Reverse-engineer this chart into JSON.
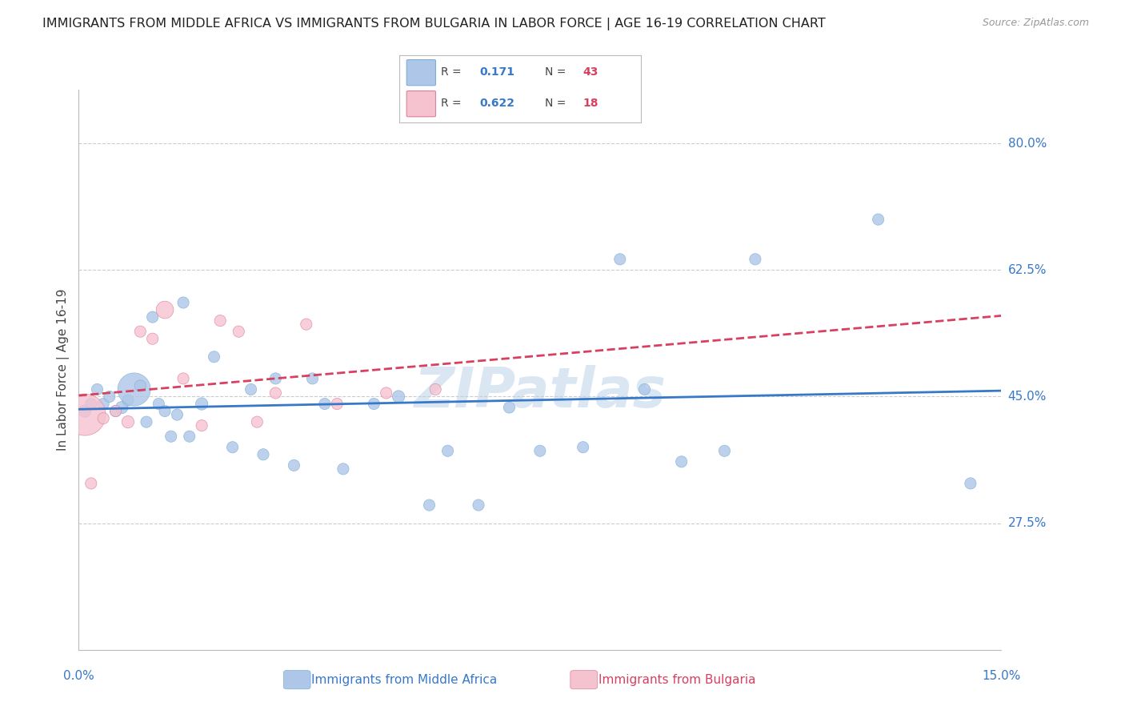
{
  "title": "IMMIGRANTS FROM MIDDLE AFRICA VS IMMIGRANTS FROM BULGARIA IN LABOR FORCE | AGE 16-19 CORRELATION CHART",
  "source": "Source: ZipAtlas.com",
  "ylabel": "In Labor Force | Age 16-19",
  "x_min": 0.0,
  "x_max": 0.15,
  "y_min": 0.1,
  "y_max": 0.875,
  "y_ticks": [
    0.275,
    0.45,
    0.625,
    0.8
  ],
  "y_tick_labels": [
    "27.5%",
    "45.0%",
    "62.5%",
    "80.0%"
  ],
  "series1_color": "#aec6e8",
  "series1_edge": "#7bafd4",
  "series2_color": "#f5c2d0",
  "series2_edge": "#e08099",
  "line1_color": "#3878c8",
  "line2_color": "#d84060",
  "watermark": "ZIPatlas",
  "legend_R1": "0.171",
  "legend_N1": "43",
  "legend_R2": "0.622",
  "legend_N2": "18",
  "blue_x": [
    0.001,
    0.002,
    0.003,
    0.004,
    0.005,
    0.006,
    0.007,
    0.008,
    0.009,
    0.01,
    0.011,
    0.012,
    0.013,
    0.014,
    0.015,
    0.016,
    0.017,
    0.018,
    0.02,
    0.022,
    0.025,
    0.028,
    0.03,
    0.032,
    0.035,
    0.038,
    0.04,
    0.043,
    0.048,
    0.052,
    0.057,
    0.06,
    0.065,
    0.07,
    0.075,
    0.082,
    0.088,
    0.092,
    0.098,
    0.105,
    0.11,
    0.13,
    0.145
  ],
  "blue_y": [
    0.43,
    0.44,
    0.46,
    0.44,
    0.45,
    0.43,
    0.435,
    0.445,
    0.46,
    0.465,
    0.415,
    0.56,
    0.44,
    0.43,
    0.395,
    0.425,
    0.58,
    0.395,
    0.44,
    0.505,
    0.38,
    0.46,
    0.37,
    0.475,
    0.355,
    0.475,
    0.44,
    0.35,
    0.44,
    0.45,
    0.3,
    0.375,
    0.3,
    0.435,
    0.375,
    0.38,
    0.64,
    0.46,
    0.36,
    0.375,
    0.64,
    0.695,
    0.33
  ],
  "blue_size": [
    35,
    30,
    30,
    30,
    30,
    30,
    35,
    30,
    250,
    30,
    30,
    30,
    30,
    30,
    30,
    30,
    30,
    30,
    35,
    30,
    30,
    30,
    30,
    30,
    30,
    30,
    30,
    30,
    30,
    35,
    30,
    30,
    30,
    30,
    30,
    30,
    30,
    30,
    30,
    30,
    30,
    30,
    30
  ],
  "pink_x": [
    0.001,
    0.002,
    0.004,
    0.006,
    0.008,
    0.01,
    0.012,
    0.014,
    0.017,
    0.02,
    0.023,
    0.026,
    0.029,
    0.032,
    0.037,
    0.042,
    0.05,
    0.058
  ],
  "pink_y": [
    0.425,
    0.33,
    0.42,
    0.43,
    0.415,
    0.54,
    0.53,
    0.57,
    0.475,
    0.41,
    0.555,
    0.54,
    0.415,
    0.455,
    0.55,
    0.44,
    0.455,
    0.46
  ],
  "pink_size": [
    400,
    30,
    30,
    30,
    35,
    30,
    30,
    70,
    30,
    30,
    30,
    30,
    30,
    30,
    30,
    30,
    30,
    30
  ]
}
